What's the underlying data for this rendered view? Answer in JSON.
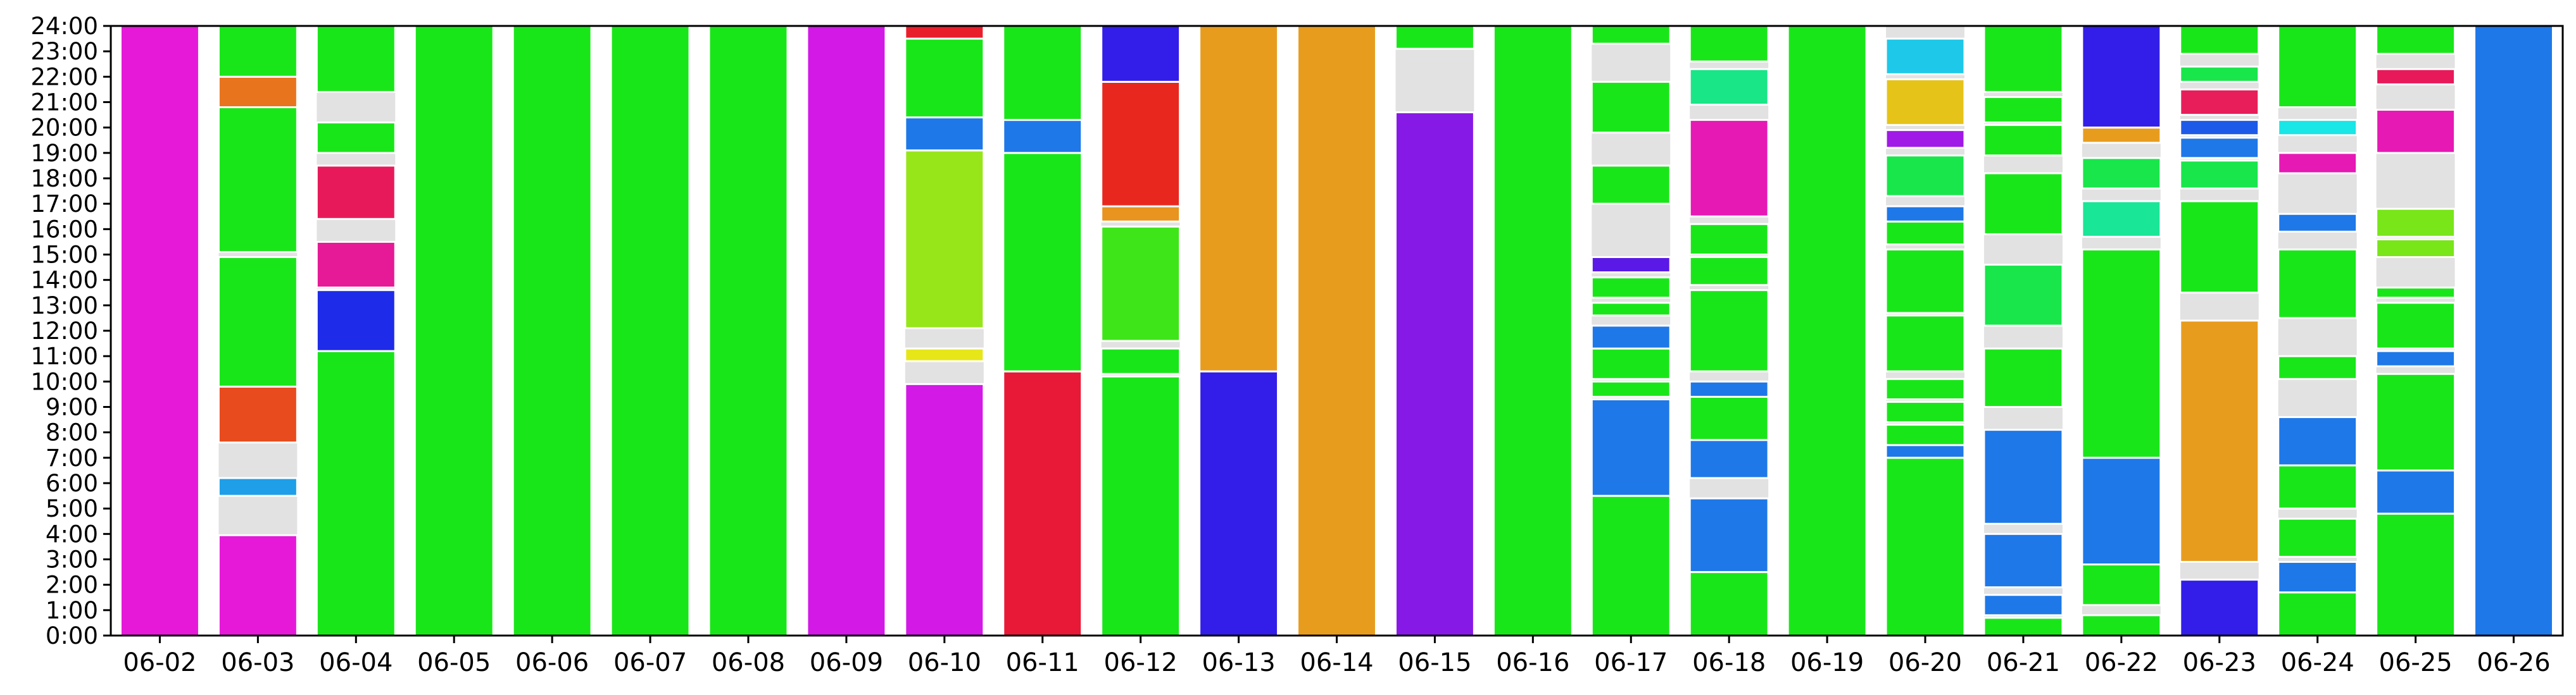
{
  "chart_data": {
    "type": "bar",
    "subtype": "stacked-time-intervals",
    "title": "",
    "xlabel": "",
    "ylabel": "",
    "ylim": [
      0,
      24
    ],
    "y_tick_labels": [
      "0:00",
      "1:00",
      "2:00",
      "3:00",
      "4:00",
      "5:00",
      "6:00",
      "7:00",
      "8:00",
      "9:00",
      "10:00",
      "11:00",
      "12:00",
      "13:00",
      "14:00",
      "15:00",
      "16:00",
      "17:00",
      "18:00",
      "19:00",
      "20:00",
      "21:00",
      "22:00",
      "23:00",
      "24:00"
    ],
    "categories": [
      "06-02",
      "06-03",
      "06-04",
      "06-05",
      "06-06",
      "06-07",
      "06-08",
      "06-09",
      "06-10",
      "06-11",
      "06-12",
      "06-13",
      "06-14",
      "06-15",
      "06-16",
      "06-17",
      "06-18",
      "06-19",
      "06-20",
      "06-21",
      "06-22",
      "06-23",
      "06-24",
      "06-25",
      "06-26"
    ],
    "grid": false,
    "legend": "none",
    "background_bar_color": "#e2e2e2",
    "days": [
      {
        "date": "06-02",
        "segments": [
          {
            "start": 0,
            "end": 24,
            "color": "#e619d9"
          }
        ]
      },
      {
        "date": "06-03",
        "segments": [
          {
            "start": 0,
            "end": 3.95,
            "color": "#e619d9"
          },
          {
            "start": 5.5,
            "end": 6.2,
            "color": "#1e9fe8"
          },
          {
            "start": 7.6,
            "end": 9.8,
            "color": "#e84b1e"
          },
          {
            "start": 9.8,
            "end": 14.9,
            "color": "#19e619"
          },
          {
            "start": 15.1,
            "end": 20.8,
            "color": "#19e619"
          },
          {
            "start": 20.8,
            "end": 22.0,
            "color": "#e8751e"
          },
          {
            "start": 22.0,
            "end": 24,
            "color": "#19e619"
          }
        ]
      },
      {
        "date": "06-04",
        "segments": [
          {
            "start": 0,
            "end": 11.2,
            "color": "#19e619"
          },
          {
            "start": 11.2,
            "end": 13.6,
            "color": "#1e2be8"
          },
          {
            "start": 13.7,
            "end": 15.5,
            "color": "#e61996"
          },
          {
            "start": 16.4,
            "end": 18.5,
            "color": "#e8195a"
          },
          {
            "start": 19.0,
            "end": 20.2,
            "color": "#19e619"
          },
          {
            "start": 21.4,
            "end": 24,
            "color": "#19e619"
          }
        ]
      },
      {
        "date": "06-05",
        "segments": [
          {
            "start": 0,
            "end": 24,
            "color": "#19e619"
          }
        ]
      },
      {
        "date": "06-06",
        "segments": [
          {
            "start": 0,
            "end": 24,
            "color": "#19e619"
          }
        ]
      },
      {
        "date": "06-07",
        "segments": [
          {
            "start": 0,
            "end": 24,
            "color": "#19e619"
          }
        ]
      },
      {
        "date": "06-08",
        "segments": [
          {
            "start": 0,
            "end": 24,
            "color": "#19e619"
          }
        ]
      },
      {
        "date": "06-09",
        "segments": [
          {
            "start": 0,
            "end": 24,
            "color": "#d219e6"
          }
        ]
      },
      {
        "date": "06-10",
        "segments": [
          {
            "start": 0,
            "end": 9.9,
            "color": "#d219e6"
          },
          {
            "start": 10.8,
            "end": 11.3,
            "color": "#e6e619"
          },
          {
            "start": 12.1,
            "end": 19.1,
            "color": "#96e619"
          },
          {
            "start": 19.1,
            "end": 20.4,
            "color": "#1e78e8"
          },
          {
            "start": 20.4,
            "end": 23.5,
            "color": "#19e619"
          },
          {
            "start": 23.5,
            "end": 24,
            "color": "#e81e2b"
          }
        ]
      },
      {
        "date": "06-11",
        "segments": [
          {
            "start": 0,
            "end": 10.4,
            "color": "#e81937"
          },
          {
            "start": 10.4,
            "end": 19.0,
            "color": "#19e619"
          },
          {
            "start": 19.0,
            "end": 20.3,
            "color": "#1e78e8"
          },
          {
            "start": 20.3,
            "end": 24,
            "color": "#19e619"
          }
        ]
      },
      {
        "date": "06-12",
        "segments": [
          {
            "start": 0,
            "end": 10.2,
            "color": "#19e619"
          },
          {
            "start": 10.3,
            "end": 11.3,
            "color": "#19e619"
          },
          {
            "start": 11.6,
            "end": 16.1,
            "color": "#3ee619"
          },
          {
            "start": 16.3,
            "end": 16.9,
            "color": "#e8941e"
          },
          {
            "start": 16.9,
            "end": 21.8,
            "color": "#e8281e"
          },
          {
            "start": 21.8,
            "end": 24,
            "color": "#321ee8"
          }
        ]
      },
      {
        "date": "06-13",
        "segments": [
          {
            "start": 0,
            "end": 10.4,
            "color": "#321ee8"
          },
          {
            "start": 10.4,
            "end": 24,
            "color": "#e89c1e"
          }
        ]
      },
      {
        "date": "06-14",
        "segments": [
          {
            "start": 0,
            "end": 24,
            "color": "#e89c1e"
          }
        ]
      },
      {
        "date": "06-15",
        "segments": [
          {
            "start": 0,
            "end": 20.6,
            "color": "#8719e6"
          },
          {
            "start": 23.1,
            "end": 24,
            "color": "#19e619"
          }
        ]
      },
      {
        "date": "06-16",
        "segments": [
          {
            "start": 0,
            "end": 24,
            "color": "#19e619"
          }
        ]
      },
      {
        "date": "06-17",
        "segments": [
          {
            "start": 0,
            "end": 5.5,
            "color": "#19e619"
          },
          {
            "start": 5.5,
            "end": 9.3,
            "color": "#1e78e8"
          },
          {
            "start": 9.4,
            "end": 10.0,
            "color": "#19e619"
          },
          {
            "start": 10.1,
            "end": 11.3,
            "color": "#19e619"
          },
          {
            "start": 11.3,
            "end": 12.2,
            "color": "#1e78e8"
          },
          {
            "start": 12.6,
            "end": 13.1,
            "color": "#19e619"
          },
          {
            "start": 13.3,
            "end": 14.1,
            "color": "#19e619"
          },
          {
            "start": 14.3,
            "end": 14.9,
            "color": "#5a19e6"
          },
          {
            "start": 17.0,
            "end": 18.5,
            "color": "#19e619"
          },
          {
            "start": 19.8,
            "end": 21.8,
            "color": "#19e619"
          },
          {
            "start": 23.3,
            "end": 24,
            "color": "#19e619"
          }
        ]
      },
      {
        "date": "06-18",
        "segments": [
          {
            "start": 0,
            "end": 2.5,
            "color": "#19e619"
          },
          {
            "start": 2.5,
            "end": 5.4,
            "color": "#1e78e8"
          },
          {
            "start": 6.2,
            "end": 7.7,
            "color": "#1e78e8"
          },
          {
            "start": 7.7,
            "end": 9.4,
            "color": "#19e619"
          },
          {
            "start": 9.4,
            "end": 10.0,
            "color": "#1e78e8"
          },
          {
            "start": 10.4,
            "end": 13.6,
            "color": "#19e619"
          },
          {
            "start": 13.8,
            "end": 14.9,
            "color": "#19e619"
          },
          {
            "start": 15.0,
            "end": 16.2,
            "color": "#19e619"
          },
          {
            "start": 16.5,
            "end": 20.3,
            "color": "#e619b4"
          },
          {
            "start": 20.9,
            "end": 22.3,
            "color": "#19e687"
          },
          {
            "start": 22.6,
            "end": 24,
            "color": "#19e619"
          }
        ]
      },
      {
        "date": "06-19",
        "segments": [
          {
            "start": 0,
            "end": 24,
            "color": "#19e619"
          }
        ]
      },
      {
        "date": "06-20",
        "segments": [
          {
            "start": 0,
            "end": 7.0,
            "color": "#19e619"
          },
          {
            "start": 7.0,
            "end": 7.5,
            "color": "#1e78e8"
          },
          {
            "start": 7.5,
            "end": 8.3,
            "color": "#19e619"
          },
          {
            "start": 8.4,
            "end": 9.2,
            "color": "#19e619"
          },
          {
            "start": 9.3,
            "end": 10.1,
            "color": "#19e619"
          },
          {
            "start": 10.4,
            "end": 12.6,
            "color": "#19e619"
          },
          {
            "start": 12.7,
            "end": 15.2,
            "color": "#19e619"
          },
          {
            "start": 15.4,
            "end": 16.3,
            "color": "#19e619"
          },
          {
            "start": 16.3,
            "end": 16.9,
            "color": "#1e78e8"
          },
          {
            "start": 17.3,
            "end": 18.9,
            "color": "#19e64b"
          },
          {
            "start": 19.2,
            "end": 19.9,
            "color": "#a019e6"
          },
          {
            "start": 20.1,
            "end": 21.9,
            "color": "#e6c319"
          },
          {
            "start": 22.1,
            "end": 23.5,
            "color": "#1ec8e8"
          }
        ]
      },
      {
        "date": "06-21",
        "segments": [
          {
            "start": 0,
            "end": 0.7,
            "color": "#19e619"
          },
          {
            "start": 0.8,
            "end": 1.6,
            "color": "#1e78e8"
          },
          {
            "start": 1.9,
            "end": 4.0,
            "color": "#1e78e8"
          },
          {
            "start": 4.4,
            "end": 8.1,
            "color": "#1e78e8"
          },
          {
            "start": 9.0,
            "end": 11.3,
            "color": "#19e619"
          },
          {
            "start": 12.2,
            "end": 14.6,
            "color": "#19e64b"
          },
          {
            "start": 15.8,
            "end": 18.2,
            "color": "#19e619"
          },
          {
            "start": 18.9,
            "end": 20.1,
            "color": "#19e619"
          },
          {
            "start": 20.2,
            "end": 21.2,
            "color": "#19e619"
          },
          {
            "start": 21.4,
            "end": 24,
            "color": "#19e619"
          }
        ]
      },
      {
        "date": "06-22",
        "segments": [
          {
            "start": 0,
            "end": 0.8,
            "color": "#19e619"
          },
          {
            "start": 1.2,
            "end": 2.8,
            "color": "#19e619"
          },
          {
            "start": 2.8,
            "end": 7.0,
            "color": "#1e78e8"
          },
          {
            "start": 7.0,
            "end": 15.2,
            "color": "#19e619"
          },
          {
            "start": 15.7,
            "end": 17.1,
            "color": "#19e696"
          },
          {
            "start": 17.6,
            "end": 18.8,
            "color": "#19e64b"
          },
          {
            "start": 19.4,
            "end": 20.0,
            "color": "#e89c1e"
          },
          {
            "start": 20.0,
            "end": 24,
            "color": "#321ee8"
          }
        ]
      },
      {
        "date": "06-23",
        "segments": [
          {
            "start": 0,
            "end": 2.2,
            "color": "#321ee8"
          },
          {
            "start": 2.9,
            "end": 12.4,
            "color": "#e89c1e"
          },
          {
            "start": 13.5,
            "end": 17.1,
            "color": "#19e619"
          },
          {
            "start": 17.6,
            "end": 18.7,
            "color": "#19e64b"
          },
          {
            "start": 18.8,
            "end": 19.6,
            "color": "#1e78e8"
          },
          {
            "start": 19.7,
            "end": 20.3,
            "color": "#1e5ae8"
          },
          {
            "start": 20.5,
            "end": 21.5,
            "color": "#e81e5a"
          },
          {
            "start": 21.8,
            "end": 22.4,
            "color": "#19e64b"
          },
          {
            "start": 22.9,
            "end": 24,
            "color": "#19e619"
          }
        ]
      },
      {
        "date": "06-24",
        "segments": [
          {
            "start": 0,
            "end": 1.7,
            "color": "#19e619"
          },
          {
            "start": 1.7,
            "end": 2.9,
            "color": "#1e78e8"
          },
          {
            "start": 3.1,
            "end": 4.6,
            "color": "#19e619"
          },
          {
            "start": 5.0,
            "end": 6.7,
            "color": "#19e619"
          },
          {
            "start": 6.7,
            "end": 8.6,
            "color": "#1e78e8"
          },
          {
            "start": 10.1,
            "end": 11.0,
            "color": "#19e619"
          },
          {
            "start": 12.5,
            "end": 15.2,
            "color": "#19e619"
          },
          {
            "start": 15.9,
            "end": 16.6,
            "color": "#1e78e8"
          },
          {
            "start": 18.2,
            "end": 19.0,
            "color": "#e619b4"
          },
          {
            "start": 19.7,
            "end": 20.3,
            "color": "#19e6e6"
          },
          {
            "start": 20.8,
            "end": 24,
            "color": "#19e619"
          }
        ]
      },
      {
        "date": "06-25",
        "segments": [
          {
            "start": 0,
            "end": 4.8,
            "color": "#19e619"
          },
          {
            "start": 4.8,
            "end": 6.5,
            "color": "#1e78e8"
          },
          {
            "start": 6.5,
            "end": 10.3,
            "color": "#19e619"
          },
          {
            "start": 10.6,
            "end": 11.2,
            "color": "#1e78e8"
          },
          {
            "start": 11.3,
            "end": 13.1,
            "color": "#19e619"
          },
          {
            "start": 13.3,
            "end": 13.7,
            "color": "#19e619"
          },
          {
            "start": 14.9,
            "end": 15.6,
            "color": "#78e619"
          },
          {
            "start": 15.7,
            "end": 16.8,
            "color": "#78e619"
          },
          {
            "start": 19.0,
            "end": 20.7,
            "color": "#e619b4"
          },
          {
            "start": 21.7,
            "end": 22.3,
            "color": "#e8195a"
          },
          {
            "start": 22.9,
            "end": 24,
            "color": "#19e619"
          }
        ]
      },
      {
        "date": "06-26",
        "segments": [
          {
            "start": 0,
            "end": 24,
            "color": "#1e78e8"
          }
        ]
      }
    ]
  }
}
